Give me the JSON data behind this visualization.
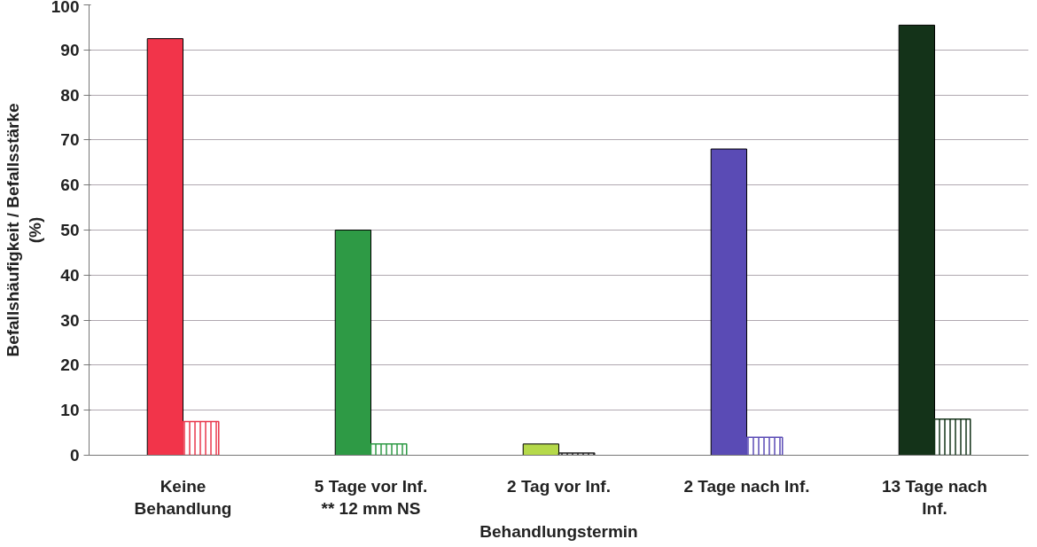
{
  "chart_data": {
    "type": "bar",
    "xlabel": "Behandlungstermin",
    "ylabel": "Befallshäufigkeit / Befallsstärke\n(%)",
    "categories": [
      "Keine\nBehandlung",
      "5 Tage vor Inf.\n** 12 mm NS",
      "2 Tag vor Inf.",
      "2 Tage nach Inf.",
      "13 Tage nach\nInf."
    ],
    "series": [
      {
        "colors": [
          "#f2344a",
          "#2e9a45",
          "#b5d94a",
          "#5a4bb5",
          "#143319"
        ],
        "values": [
          92.5,
          50,
          2.5,
          68,
          95.5
        ]
      },
      {
        "colors": [
          "#e8384c",
          "#2e9a45",
          "#222222",
          "#5a4bb5",
          "#143319"
        ],
        "values": [
          7.5,
          2.5,
          0.5,
          4,
          8
        ]
      }
    ],
    "ylim": [
      0,
      100
    ],
    "yticks": [
      0,
      10,
      20,
      30,
      40,
      50,
      60,
      70,
      80,
      90,
      100
    ],
    "grid": "y"
  }
}
